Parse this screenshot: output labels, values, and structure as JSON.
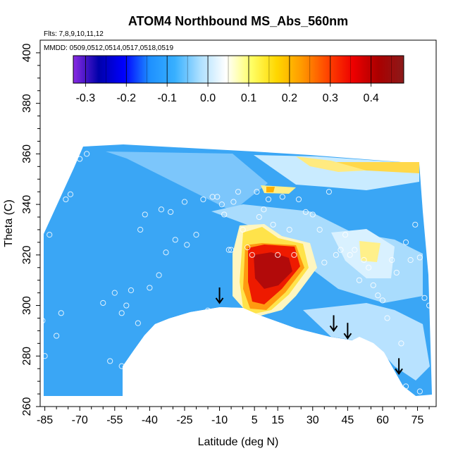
{
  "chart_data": {
    "type": "heatmap",
    "title": "ATOM4 Northbound MS_Abs_560nm",
    "flights_note": "Flts: 7,8,9,10,11,12",
    "dates_note": "MMDD: 0509,0512,0514,0517,0518,0519",
    "xlabel": "Latitude (deg N)",
    "ylabel": "Theta (C)",
    "xlim": [
      -87,
      83
    ],
    "ylim": [
      260,
      405
    ],
    "xticks": [
      -85,
      -70,
      -55,
      -40,
      -25,
      -10,
      5,
      15,
      30,
      45,
      60,
      75
    ],
    "xtick_labels": [
      "-85",
      "-70",
      "-55",
      "-40",
      "-25",
      "-10",
      "5",
      "15",
      "30",
      "45",
      "60",
      "75"
    ],
    "yticks": [
      260,
      280,
      300,
      320,
      340,
      360,
      380,
      400
    ],
    "ytick_labels": [
      "260",
      "280",
      "300",
      "320",
      "340",
      "360",
      "380",
      "400"
    ],
    "colorbar": {
      "min": -0.33,
      "max": 0.48,
      "ticks": [
        -0.3,
        -0.2,
        -0.1,
        0.0,
        0.1,
        0.2,
        0.3,
        0.4
      ],
      "tick_labels": [
        "-0.3",
        "-0.2",
        "-0.1",
        "0.0",
        "0.1",
        "0.2",
        "0.3",
        "0.4"
      ],
      "colors": [
        "#8a2be2",
        "#0000aa",
        "#0000ff",
        "#1e90ff",
        "#38b0ff",
        "#aee0ff",
        "#ffffff",
        "#ffff66",
        "#ffd700",
        "#ff9900",
        "#ff4400",
        "#ee0000",
        "#aa0000",
        "#8b1a1a"
      ]
    },
    "arrows": [
      {
        "lat": -10,
        "theta": 301
      },
      {
        "lat": 39,
        "theta": 290
      },
      {
        "lat": 45,
        "theta": 287
      },
      {
        "lat": 67,
        "theta": 273
      }
    ],
    "grid": false,
    "colorbar_position": "top-inside"
  }
}
